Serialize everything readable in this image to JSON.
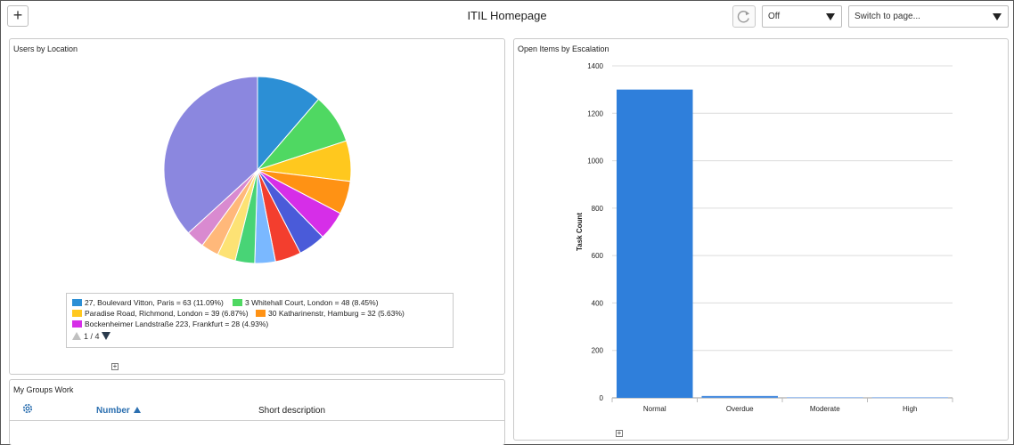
{
  "header": {
    "add_label": "+",
    "title": "ITIL Homepage",
    "refresh_interval": "Off",
    "switch_page_placeholder": "Switch to page..."
  },
  "users_by_location": {
    "title": "Users by Location",
    "legend": [
      {
        "label": "27, Boulevard Vitton, Paris = 63 (11.09%)",
        "color": "#2c8fd5"
      },
      {
        "label": "3 Whitehall Court, London = 48 (8.45%)",
        "color": "#4fd862"
      },
      {
        "label": "Paradise Road, Richmond, London = 39 (6.87%)",
        "color": "#ffc81e"
      },
      {
        "label": "30 Katharinenstr, Hamburg = 32 (5.63%)",
        "color": "#ff9214"
      },
      {
        "label": "Bockenheimer Landstraße 223, Frankfurt = 28 (4.93%)",
        "color": "#d62ee8"
      }
    ],
    "pager_text": "1 / 4",
    "pie": [
      {
        "value": 11.09,
        "color": "#2c8fd5"
      },
      {
        "value": 8.45,
        "color": "#4fd862"
      },
      {
        "value": 6.87,
        "color": "#ffc81e"
      },
      {
        "value": 5.63,
        "color": "#ff9214"
      },
      {
        "value": 4.93,
        "color": "#d62ee8"
      },
      {
        "value": 4.6,
        "color": "#4a5bd9"
      },
      {
        "value": 4.4,
        "color": "#f33e2e"
      },
      {
        "value": 3.5,
        "color": "#7ab8ff"
      },
      {
        "value": 3.3,
        "color": "#48d476"
      },
      {
        "value": 3.1,
        "color": "#fde274"
      },
      {
        "value": 3.0,
        "color": "#ffb87a"
      },
      {
        "value": 3.1,
        "color": "#d98ad0"
      },
      {
        "value": 36.03,
        "color": "#8b87df"
      }
    ]
  },
  "open_items": {
    "title": "Open Items by Escalation",
    "chart_data": {
      "type": "bar",
      "categories": [
        "Normal",
        "Overdue",
        "Moderate",
        "High"
      ],
      "values": [
        1300,
        8,
        3,
        3
      ],
      "colors": [
        "#2f7fdb",
        "#4c8fe0",
        "#8db6ee",
        "#8db6ee"
      ],
      "title": "Open Items by Escalation",
      "xlabel": "",
      "ylabel": "Task Count",
      "ylim": [
        0,
        1400
      ],
      "yticks": [
        0,
        200,
        400,
        600,
        800,
        1000,
        1200,
        1400
      ],
      "grid": true
    }
  },
  "groups_work": {
    "title": "My Groups Work",
    "col_number": "Number",
    "col_short_description": "Short description"
  }
}
